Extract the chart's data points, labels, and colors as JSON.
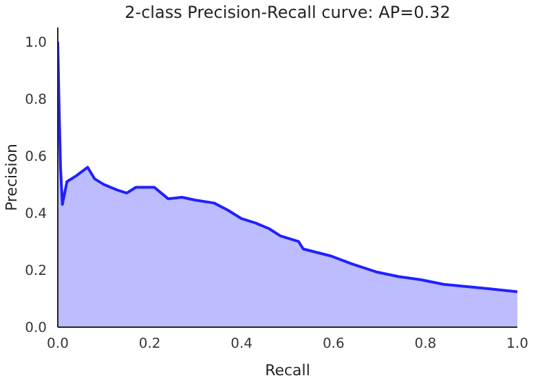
{
  "chart_data": {
    "type": "area",
    "title": "2-class Precision-Recall curve: AP=0.32",
    "xlabel": "Recall",
    "ylabel": "Precision",
    "xlim": [
      0,
      1
    ],
    "ylim": [
      0,
      1.05
    ],
    "xticks": [
      {
        "value": 0,
        "label": "0.0"
      },
      0.2,
      0.4,
      0.6,
      0.8,
      {
        "value": 1,
        "label": "1.0"
      }
    ],
    "yticks": [
      {
        "value": 0,
        "label": "0.0"
      },
      0.2,
      0.4,
      0.6,
      0.8,
      {
        "value": 1,
        "label": "1.0"
      }
    ],
    "grid": false,
    "legend": false,
    "series": [
      {
        "color": "#2020ff",
        "x": [
          0,
          0.003,
          0.006,
          0.01,
          0.02,
          0.04,
          0.065,
          0.08,
          0.1,
          0.13,
          0.15,
          0.17,
          0.21,
          0.24,
          0.27,
          0.3,
          0.34,
          0.37,
          0.4,
          0.43,
          0.46,
          0.484,
          0.524,
          0.534,
          0.593,
          0.643,
          0.692,
          0.742,
          0.79,
          0.84,
          0.89,
          0.94,
          1.0
        ],
        "values": [
          1.0,
          0.76,
          0.56,
          0.43,
          0.51,
          0.53,
          0.56,
          0.52,
          0.5,
          0.48,
          0.47,
          0.49,
          0.49,
          0.45,
          0.455,
          0.445,
          0.435,
          0.41,
          0.38,
          0.365,
          0.345,
          0.32,
          0.3,
          0.274,
          0.25,
          0.22,
          0.194,
          0.177,
          0.166,
          0.15,
          0.142,
          0.134,
          0.124
        ]
      }
    ]
  }
}
